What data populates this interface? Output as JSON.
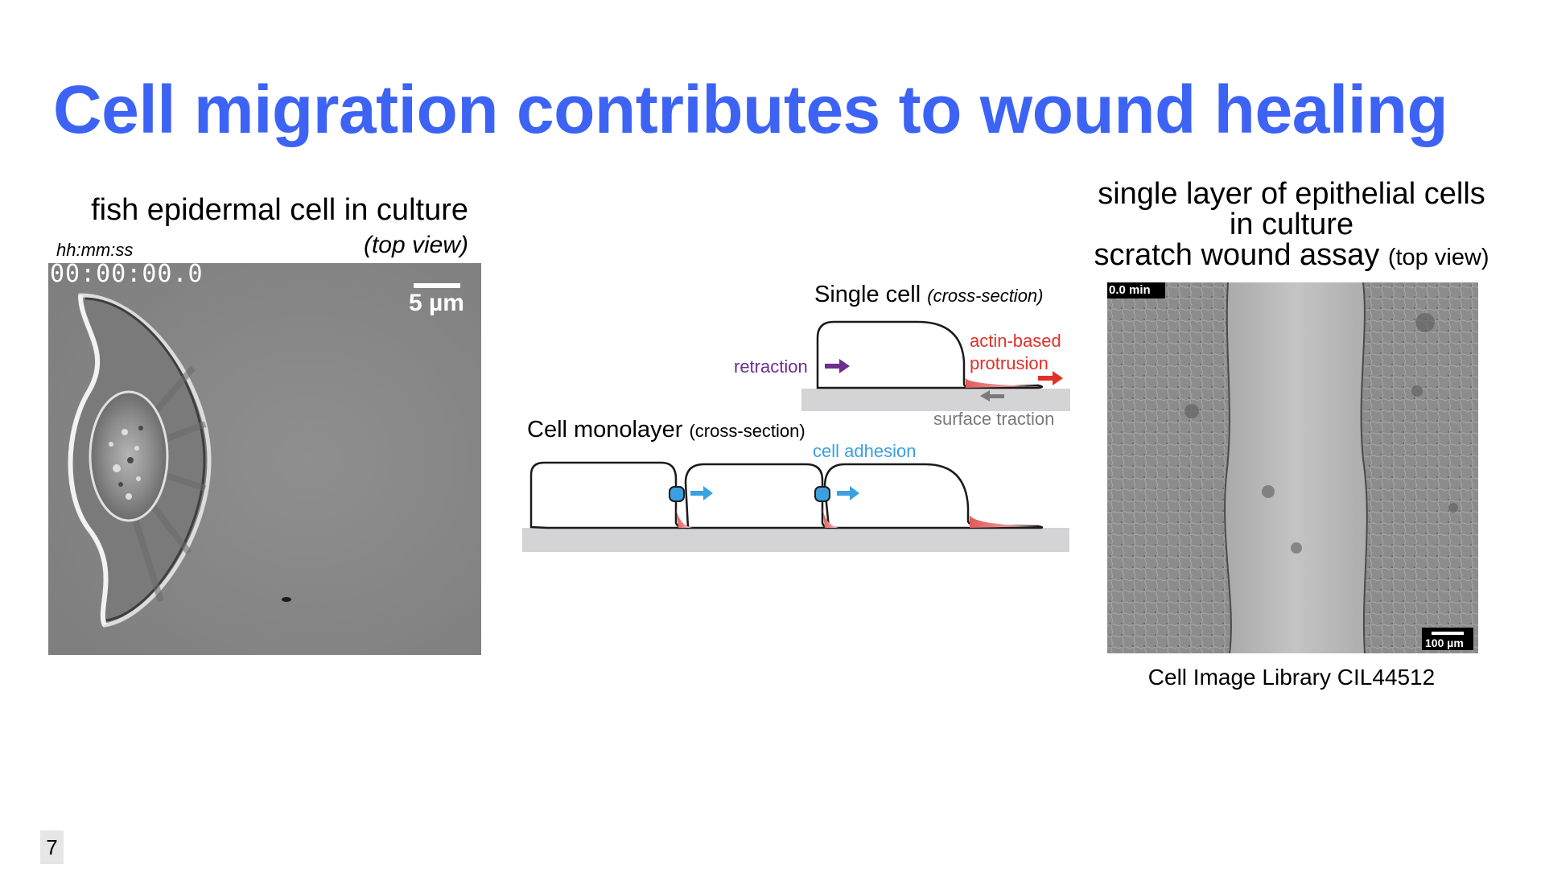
{
  "slide": {
    "title": "Cell migration contributes to wound healing",
    "page_number": "7"
  },
  "left_panel": {
    "caption": "fish epidermal cell in culture",
    "view": "(top view)",
    "time_format_label": "hh:mm:ss",
    "timestamp": "00:00:00.0",
    "scale_bar_label": "5 µm"
  },
  "diagram": {
    "single_cell_title": "Single cell",
    "single_cell_subtitle": "(cross-section)",
    "retraction_label": "retraction",
    "protrusion_label_line1": "actin-based",
    "protrusion_label_line2": "protrusion",
    "traction_label": "surface traction",
    "monolayer_title": "Cell monolayer",
    "monolayer_subtitle": "(cross-section)",
    "adhesion_label": "cell adhesion",
    "colors": {
      "retraction": "#6b2d8f",
      "protrusion": "#e03128",
      "traction": "#7a7a7a",
      "adhesion": "#3aa0e0",
      "surface": "#d4d4d6"
    }
  },
  "right_panel": {
    "caption_line1": "single layer of epithelial cells",
    "caption_line2": "in culture",
    "caption_line3": "scratch wound assay",
    "view": "(top view)",
    "time_label": "0.0 min",
    "scale_bar_label": "100 µm",
    "credit": "Cell Image Library CIL44512"
  },
  "colors": {
    "title": "#3d63f5"
  }
}
